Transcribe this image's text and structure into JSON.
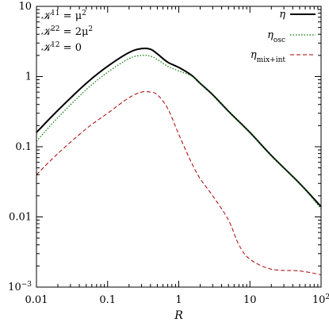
{
  "chart_data": {
    "type": "line",
    "xlabel": "R",
    "xscale": "log",
    "yscale": "log",
    "xlim": [
      0.01,
      100
    ],
    "ylim": [
      0.001,
      10
    ],
    "x_ticks": [
      {
        "value": 0.01,
        "label": "0.01"
      },
      {
        "value": 0.1,
        "label": "0.1"
      },
      {
        "value": 1,
        "label": "1"
      },
      {
        "value": 10,
        "label": "10"
      },
      {
        "value": 100,
        "label": "10",
        "sup": "2"
      }
    ],
    "y_ticks": [
      {
        "value": 0.001,
        "label": "10",
        "sup": "−3"
      },
      {
        "value": 0.01,
        "label": "0.01"
      },
      {
        "value": 0.1,
        "label": "0.1"
      },
      {
        "value": 1,
        "label": "1"
      },
      {
        "value": 10,
        "label": "10"
      }
    ],
    "annotation": {
      "lines": [
        {
          "lhs": "𝒦",
          "sup": "11",
          "rhs": " = μ",
          "rhs_sup": "2"
        },
        {
          "lhs": "𝒦",
          "sup": "22",
          "rhs": " = 2μ",
          "rhs_sup": "2"
        },
        {
          "lhs": "𝒦",
          "sup": "12",
          "rhs": " = 0",
          "rhs_sup": ""
        }
      ]
    },
    "legend_position": "top-right",
    "grid": false,
    "series": [
      {
        "name": "η",
        "name_sub": "",
        "color": "#000000",
        "style": "solid",
        "x": [
          0.01,
          0.02,
          0.05,
          0.1,
          0.2,
          0.3,
          0.4,
          0.5,
          0.7,
          1,
          1.5,
          2,
          3,
          5,
          10,
          20,
          50,
          100
        ],
        "y": [
          0.16,
          0.33,
          0.8,
          1.4,
          2.2,
          2.5,
          2.45,
          2.1,
          1.6,
          1.35,
          1.05,
          0.8,
          0.55,
          0.32,
          0.16,
          0.075,
          0.03,
          0.014
        ]
      },
      {
        "name": "η",
        "name_sub": "osc",
        "color": "#007700",
        "style": "dotted",
        "x": [
          0.01,
          0.02,
          0.05,
          0.1,
          0.2,
          0.3,
          0.4,
          0.5,
          0.7,
          1,
          1.5,
          2,
          3,
          5,
          10,
          20,
          50,
          100
        ],
        "y": [
          0.12,
          0.26,
          0.65,
          1.15,
          1.8,
          2.0,
          1.95,
          1.75,
          1.4,
          1.2,
          1.02,
          0.8,
          0.55,
          0.32,
          0.16,
          0.075,
          0.03,
          0.013
        ]
      },
      {
        "name": "η",
        "name_sub": "mix+int",
        "color": "#aa0000",
        "style": "dashed",
        "x": [
          0.01,
          0.02,
          0.05,
          0.1,
          0.2,
          0.3,
          0.4,
          0.5,
          0.7,
          1,
          1.5,
          2,
          3,
          5,
          7,
          10,
          20,
          50,
          100
        ],
        "y": [
          0.04,
          0.08,
          0.18,
          0.3,
          0.5,
          0.6,
          0.6,
          0.55,
          0.35,
          0.15,
          0.06,
          0.035,
          0.02,
          0.009,
          0.004,
          0.0025,
          0.0018,
          0.0017,
          0.0015
        ]
      }
    ]
  }
}
